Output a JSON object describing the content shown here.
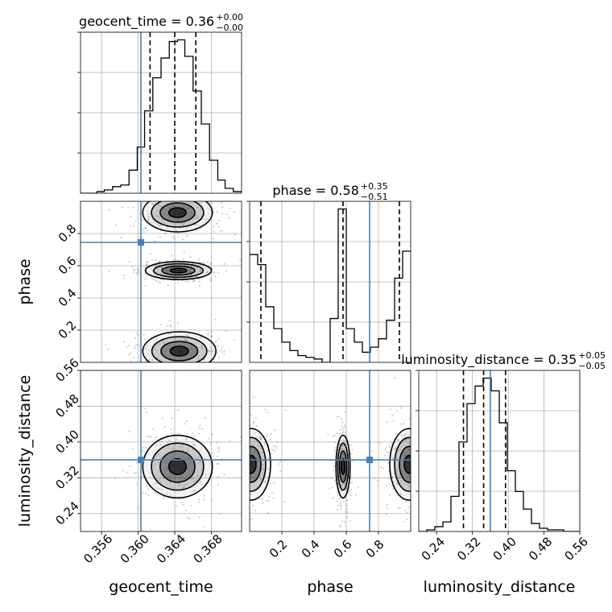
{
  "chart_data": {
    "type": "corner",
    "parameters": [
      "geocent_time",
      "phase",
      "luminosity_distance"
    ],
    "truth": {
      "geocent_time": 0.3603,
      "phase": 0.745,
      "luminosity_distance": 0.36
    },
    "titles": [
      {
        "param": "geocent_time",
        "prefix": "geocent_time = 0.36",
        "plus": "+0.00",
        "minus": "−0.00"
      },
      {
        "param": "phase",
        "prefix": "phase = 0.58",
        "plus": "+0.35",
        "minus": "−0.51"
      },
      {
        "param": "luminosity_distance",
        "prefix": "luminosity_distance = 0.35",
        "plus": "+0.05",
        "minus": "−0.05"
      }
    ],
    "axes": {
      "geocent_time": {
        "range": [
          0.3537,
          0.3713
        ],
        "ticks": [
          0.356,
          0.36,
          0.364,
          0.368
        ],
        "tick_labels": [
          "0.356",
          "0.360",
          "0.364",
          "0.368"
        ],
        "quantiles": [
          0.3613,
          0.364,
          0.3663
        ]
      },
      "phase": {
        "range": [
          0.0,
          1.0
        ],
        "ticks": [
          0.2,
          0.4,
          0.6,
          0.8
        ],
        "tick_labels": [
          "0.2",
          "0.4",
          "0.6",
          "0.8"
        ],
        "quantiles": [
          0.07,
          0.58,
          0.93
        ]
      },
      "luminosity_distance": {
        "range": [
          0.2,
          0.56
        ],
        "ticks": [
          0.24,
          0.32,
          0.4,
          0.48,
          0.56
        ],
        "tick_labels": [
          "0.24",
          "0.32",
          "0.40",
          "0.48",
          "0.56"
        ],
        "quantiles": [
          0.3,
          0.345,
          0.394
        ]
      }
    },
    "histograms": {
      "geocent_time": {
        "bin_edges": [
          0.3537,
          0.3546,
          0.3555,
          0.3563,
          0.3572,
          0.3581,
          0.359,
          0.3599,
          0.3607,
          0.3616,
          0.3625,
          0.3634,
          0.3643,
          0.3651,
          0.366,
          0.3669,
          0.3678,
          0.3687,
          0.3695,
          0.3704,
          0.3713
        ],
        "counts": [
          0,
          0,
          0.01,
          0.02,
          0.04,
          0.05,
          0.14,
          0.28,
          0.5,
          0.7,
          0.82,
          0.92,
          0.93,
          0.83,
          0.62,
          0.42,
          0.2,
          0.08,
          0.03,
          0.01
        ]
      },
      "phase": {
        "bin_edges": [
          0,
          0.05,
          0.1,
          0.15,
          0.2,
          0.25,
          0.3,
          0.35,
          0.4,
          0.45,
          0.5,
          0.55,
          0.6,
          0.65,
          0.7,
          0.75,
          0.8,
          0.85,
          0.9,
          0.95,
          1.0
        ],
        "counts": [
          0.64,
          0.58,
          0.33,
          0.2,
          0.12,
          0.07,
          0.04,
          0.03,
          0.02,
          0,
          0.26,
          0.91,
          0.2,
          0.12,
          0.06,
          0.09,
          0.14,
          0.25,
          0.5,
          0.66
        ]
      },
      "luminosity_distance": {
        "bin_edges": [
          0.2,
          0.218,
          0.236,
          0.254,
          0.272,
          0.29,
          0.308,
          0.326,
          0.344,
          0.362,
          0.38,
          0.398,
          0.416,
          0.434,
          0.452,
          0.47,
          0.488,
          0.506,
          0.524,
          0.542,
          0.56
        ],
        "counts": [
          0,
          0.01,
          0.03,
          0.06,
          0.22,
          0.56,
          0.8,
          0.91,
          0.96,
          0.88,
          0.68,
          0.38,
          0.25,
          0.14,
          0.05,
          0.02,
          0.01,
          0.01,
          0,
          0
        ]
      }
    },
    "joint_modes": [
      {
        "x": "geocent_time",
        "y": "phase",
        "cx": 0.3644,
        "cy": 0.57,
        "sx": 0.0018,
        "sy": 0.028
      },
      {
        "x": "geocent_time",
        "y": "phase",
        "cx": 0.3643,
        "cy": 0.93,
        "sx": 0.0019,
        "sy": 0.06
      },
      {
        "x": "geocent_time",
        "y": "phase",
        "cx": 0.3645,
        "cy": 0.07,
        "sx": 0.002,
        "sy": 0.06
      },
      {
        "x": "geocent_time",
        "y": "luminosity_distance",
        "cx": 0.3643,
        "cy": 0.345,
        "sx": 0.0019,
        "sy": 0.035
      },
      {
        "x": "phase",
        "y": "luminosity_distance",
        "cx": 0.58,
        "cy": 0.345,
        "sx": 0.022,
        "sy": 0.035
      },
      {
        "x": "phase",
        "y": "luminosity_distance",
        "cx": 0.01,
        "cy": 0.35,
        "sx": 0.06,
        "sy": 0.04
      },
      {
        "x": "phase",
        "y": "luminosity_distance",
        "cx": 0.99,
        "cy": 0.35,
        "sx": 0.06,
        "sy": 0.04
      }
    ],
    "contour_levels": [
      "0.5 sigma",
      "1 sigma",
      "1.5 sigma",
      "2 sigma"
    ],
    "truth_color": "#4682b4",
    "grid": true
  }
}
